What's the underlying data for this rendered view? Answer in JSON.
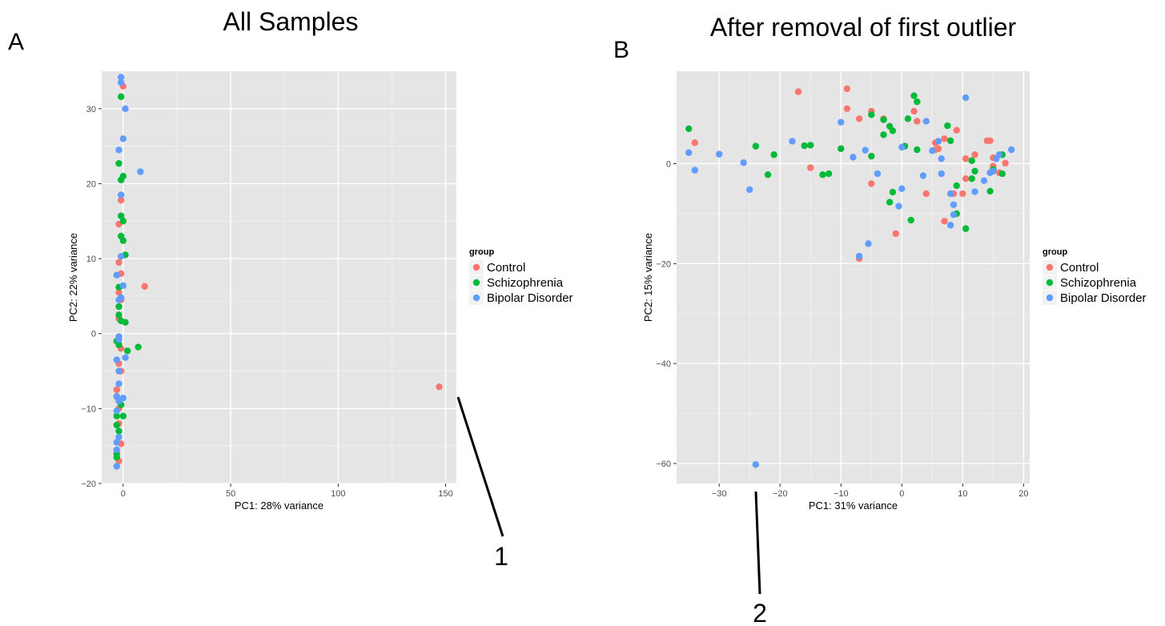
{
  "colors": {
    "panel_bg": "#e5e5e5",
    "grid_major": "#ffffff",
    "grid_minor": "#f2f2f2",
    "Control": "#f8766d",
    "Schizophrenia": "#00ba38",
    "Bipolar Disorder": "#619cff"
  },
  "legend": {
    "title": "group",
    "items": [
      "Control",
      "Schizophrenia",
      "Bipolar Disorder"
    ]
  },
  "chart_data": [
    {
      "type": "scatter",
      "panel_label": "A",
      "title": "All Samples",
      "xlabel": "PC1: 28% variance",
      "ylabel": "PC2: 22% variance",
      "xlim": [
        -10,
        155
      ],
      "ylim": [
        -20,
        35
      ],
      "xticks": [
        0,
        50,
        100,
        150
      ],
      "yticks": [
        -20,
        -10,
        0,
        10,
        20,
        30
      ],
      "callout": "1",
      "series": [
        {
          "name": "Control",
          "points": [
            [
              0,
              33
            ],
            [
              -1,
              17.8
            ],
            [
              -2,
              14.6
            ],
            [
              -2,
              9.5
            ],
            [
              -1,
              8
            ],
            [
              -2,
              5.5
            ],
            [
              -1,
              4.5
            ],
            [
              10,
              6.3
            ],
            [
              -2,
              2
            ],
            [
              -1,
              -2
            ],
            [
              -2,
              -4
            ],
            [
              -1,
              -5
            ],
            [
              -3,
              -7.5
            ],
            [
              -2,
              -10
            ],
            [
              -2,
              -12
            ],
            [
              -1,
              -14.7
            ],
            [
              -2,
              -17
            ],
            [
              147,
              -7.1
            ]
          ]
        },
        {
          "name": "Schizophrenia",
          "points": [
            [
              -1,
              31.6
            ],
            [
              -2,
              22.7
            ],
            [
              -1,
              20.5
            ],
            [
              0,
              21
            ],
            [
              -1,
              15.7
            ],
            [
              0,
              15
            ],
            [
              -1,
              13
            ],
            [
              0,
              12.4
            ],
            [
              1,
              10.5
            ],
            [
              -2,
              6.2
            ],
            [
              -2,
              3.6
            ],
            [
              -2,
              2.5
            ],
            [
              -1,
              1.7
            ],
            [
              1,
              1.5
            ],
            [
              -3,
              -1
            ],
            [
              -2,
              -1.5
            ],
            [
              2,
              -2.3
            ],
            [
              7,
              -1.8
            ],
            [
              -3,
              -8.4
            ],
            [
              -1,
              -9.5
            ],
            [
              -3,
              -11
            ],
            [
              0,
              -11
            ],
            [
              -3,
              -12.2
            ],
            [
              -2,
              -13
            ],
            [
              -3,
              -16
            ],
            [
              -3,
              -16.5
            ]
          ]
        },
        {
          "name": "Bipolar Disorder",
          "points": [
            [
              -1,
              34.2
            ],
            [
              -1,
              33.5
            ],
            [
              1,
              30
            ],
            [
              0,
              26
            ],
            [
              -2,
              24.5
            ],
            [
              8,
              21.6
            ],
            [
              -1,
              18.5
            ],
            [
              -1,
              10.3
            ],
            [
              -3,
              7.8
            ],
            [
              0,
              6.4
            ],
            [
              -1,
              4.8
            ],
            [
              -2,
              4.5
            ],
            [
              -2,
              -0.4
            ],
            [
              -2,
              -0.8
            ],
            [
              -3,
              -3.5
            ],
            [
              1,
              -3.2
            ],
            [
              -2,
              -5
            ],
            [
              -2,
              -6.7
            ],
            [
              -3,
              -8.4
            ],
            [
              0,
              -8.6
            ],
            [
              -2,
              -9
            ],
            [
              -3,
              -10.3
            ],
            [
              -2,
              -13.8
            ],
            [
              -3,
              -14.5
            ],
            [
              -3,
              -15.5
            ],
            [
              -3,
              -17.7
            ]
          ]
        }
      ]
    },
    {
      "type": "scatter",
      "panel_label": "B",
      "title": "After removal of first outlier",
      "xlabel": "PC1: 31% variance",
      "ylabel": "PC2: 15% variance",
      "xlim": [
        -37,
        21
      ],
      "ylim": [
        -64,
        18.5
      ],
      "xticks": [
        -30,
        -20,
        -10,
        0,
        10,
        20
      ],
      "yticks": [
        -60,
        -40,
        -20,
        0
      ],
      "callout": "2",
      "series": [
        {
          "name": "Control",
          "points": [
            [
              -34,
              4.2
            ],
            [
              -17,
              14.4
            ],
            [
              -15,
              -0.8
            ],
            [
              -9,
              15
            ],
            [
              -9,
              11
            ],
            [
              -7,
              9
            ],
            [
              -5,
              10.5
            ],
            [
              -3,
              9
            ],
            [
              -5,
              -4
            ],
            [
              -7,
              -19
            ],
            [
              -1,
              -14
            ],
            [
              2,
              10.5
            ],
            [
              2.5,
              8.5
            ],
            [
              4,
              -6
            ],
            [
              5.5,
              4.2
            ],
            [
              5.5,
              2.8
            ],
            [
              6,
              3
            ],
            [
              7,
              5
            ],
            [
              8.5,
              -6
            ],
            [
              9,
              6.7
            ],
            [
              10,
              -6
            ],
            [
              10.5,
              1
            ],
            [
              10.5,
              -3
            ],
            [
              12,
              1.8
            ],
            [
              14,
              4.6
            ],
            [
              14.5,
              4.6
            ],
            [
              15,
              1.2
            ],
            [
              15,
              -0.5
            ],
            [
              16,
              -1.8
            ],
            [
              17,
              0.1
            ],
            [
              7,
              -11.5
            ]
          ]
        },
        {
          "name": "Schizophrenia",
          "points": [
            [
              -35,
              7
            ],
            [
              -24,
              3.5
            ],
            [
              -22,
              -2.2
            ],
            [
              -21,
              1.8
            ],
            [
              -16,
              3.6
            ],
            [
              -15,
              3.7
            ],
            [
              -13,
              -2.2
            ],
            [
              -12,
              -2
            ],
            [
              -10,
              3
            ],
            [
              -5,
              9.8
            ],
            [
              -5,
              1.5
            ],
            [
              -3,
              5.8
            ],
            [
              -3,
              8.8
            ],
            [
              -2,
              7.5
            ],
            [
              -1.5,
              6.6
            ],
            [
              -1.5,
              -5.7
            ],
            [
              -2,
              -7.7
            ],
            [
              1,
              9
            ],
            [
              1.5,
              -11.3
            ],
            [
              2,
              13.6
            ],
            [
              2.5,
              12.4
            ],
            [
              2.5,
              2.8
            ],
            [
              0.5,
              3.5
            ],
            [
              7.5,
              7.6
            ],
            [
              8,
              4.6
            ],
            [
              9,
              -4.4
            ],
            [
              9,
              -10
            ],
            [
              10.5,
              -13
            ],
            [
              11.5,
              -3
            ],
            [
              11.5,
              0.6
            ],
            [
              12,
              -1.5
            ],
            [
              14.5,
              -5.5
            ],
            [
              15,
              -1.2
            ],
            [
              16.5,
              1.8
            ],
            [
              16.5,
              -2
            ]
          ]
        },
        {
          "name": "Bipolar Disorder",
          "points": [
            [
              -35,
              2.2
            ],
            [
              -34,
              -1.3
            ],
            [
              -30,
              1.9
            ],
            [
              -26,
              0.2
            ],
            [
              -25,
              -5.2
            ],
            [
              -18,
              4.5
            ],
            [
              -10,
              8.3
            ],
            [
              -8,
              1.3
            ],
            [
              -6,
              2.7
            ],
            [
              -5.5,
              -16
            ],
            [
              -7,
              -18.5
            ],
            [
              -4,
              -2
            ],
            [
              -0.5,
              -8.5
            ],
            [
              0,
              -5
            ],
            [
              0,
              3.3
            ],
            [
              3.5,
              -2.4
            ],
            [
              4,
              8.5
            ],
            [
              5,
              2.6
            ],
            [
              6,
              4.5
            ],
            [
              6.5,
              1
            ],
            [
              6.5,
              -2
            ],
            [
              8,
              -6
            ],
            [
              8,
              -12.3
            ],
            [
              8.5,
              -8.2
            ],
            [
              8.5,
              -10.2
            ],
            [
              10.5,
              13.2
            ],
            [
              12,
              -5.6
            ],
            [
              13.5,
              -3.4
            ],
            [
              14.5,
              -1.8
            ],
            [
              15,
              -1.5
            ],
            [
              15.5,
              1
            ],
            [
              16,
              1.8
            ],
            [
              18,
              2.8
            ],
            [
              -24,
              -60.2
            ]
          ]
        }
      ]
    }
  ]
}
